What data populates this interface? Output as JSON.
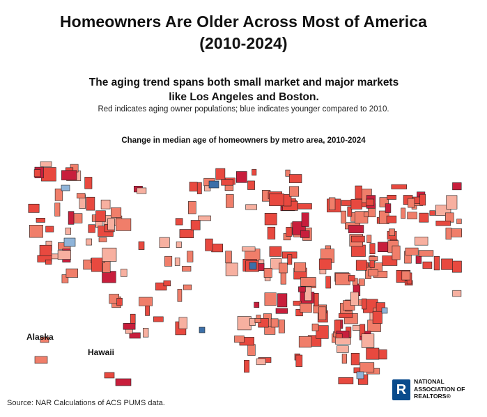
{
  "header": {
    "title_line1": "Homeowners Are Older Across Most of America",
    "title_line2": "(2010-2024)",
    "subtitle_line1": "The aging trend spans both small market and major markets",
    "subtitle_line2": "like Los Angeles and Boston.",
    "caption": "Red indicates aging owner populations; blue indicates younger compared to 2010."
  },
  "map": {
    "heading": "Change in median age of homeowners by metro area, 2010-2024",
    "labels": {
      "alaska": "Alaska",
      "hawaii": "Hawaii"
    },
    "colors": {
      "aging_strong": "#c81e3c",
      "aging": "#e8493f",
      "aging_mild": "#f07e6a",
      "aging_slight": "#f7b0a0",
      "younger": "#8fb4d9",
      "younger_strong": "#3c6fa8"
    }
  },
  "footer": {
    "source": "Source: NAR Calculations of ACS PUMS data.",
    "logo_line1": "NATIONAL",
    "logo_line2": "ASSOCIATION OF",
    "logo_line3": "REALTORS®",
    "logo_mark": "R"
  }
}
